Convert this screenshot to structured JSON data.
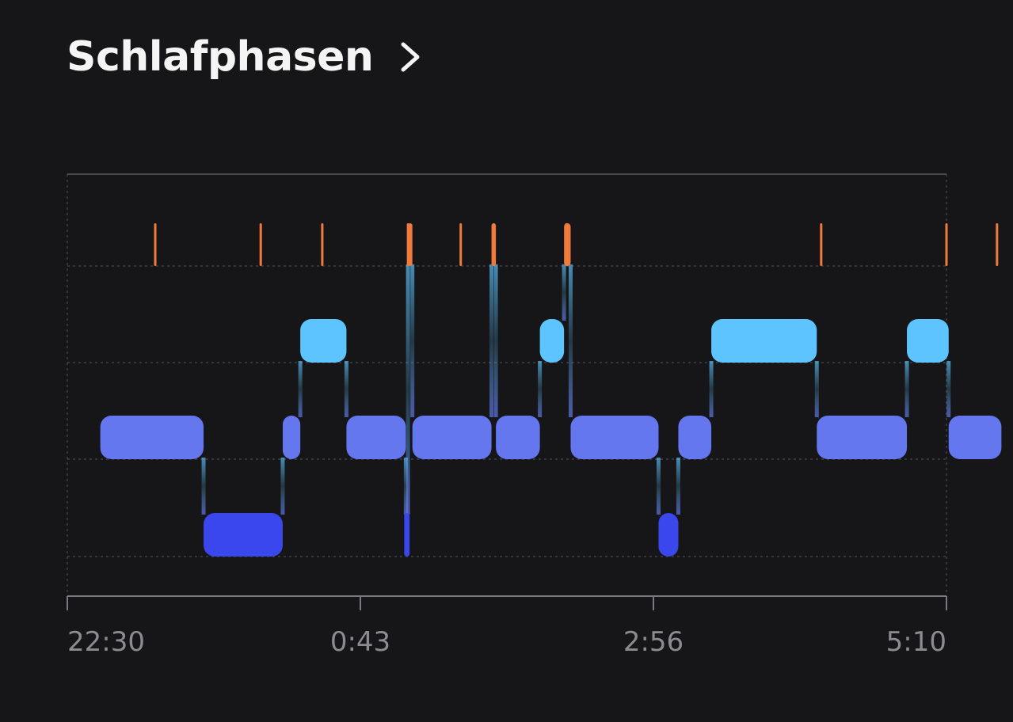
{
  "header": {
    "title": "Schlafphasen",
    "chevron_icon": "chevron-right-icon"
  },
  "chart_data": {
    "type": "timeline",
    "x_ticks": [
      "22:30",
      "0:43",
      "2:56",
      "5:10"
    ],
    "x_range": [
      "22:30",
      "5:10"
    ],
    "grid": true,
    "colors": {
      "awake": "#f07a3c",
      "rem": "#5ec4ff",
      "light": "#6577ee",
      "deep": "#3947ec"
    },
    "stages": [
      "awake",
      "rem",
      "light",
      "deep"
    ],
    "segments": [
      {
        "stage": "light",
        "start": "22:45",
        "end": "23:32"
      },
      {
        "stage": "deep",
        "start": "23:32",
        "end": "0:08"
      },
      {
        "stage": "light",
        "start": "0:08",
        "end": "0:16"
      },
      {
        "stage": "rem",
        "start": "0:16",
        "end": "0:37"
      },
      {
        "stage": "light",
        "start": "0:37",
        "end": "1:04"
      },
      {
        "stage": "deep",
        "start": "1:04",
        "end": "1:05"
      },
      {
        "stage": "awake",
        "start": "1:05",
        "end": "1:07"
      },
      {
        "stage": "light",
        "start": "1:07",
        "end": "1:43"
      },
      {
        "stage": "awake",
        "start": "1:43",
        "end": "1:45"
      },
      {
        "stage": "light",
        "start": "1:45",
        "end": "2:05"
      },
      {
        "stage": "rem",
        "start": "2:05",
        "end": "2:16"
      },
      {
        "stage": "awake",
        "start": "2:16",
        "end": "2:19"
      },
      {
        "stage": "light",
        "start": "2:19",
        "end": "2:59"
      },
      {
        "stage": "deep",
        "start": "2:59",
        "end": "3:08"
      },
      {
        "stage": "light",
        "start": "3:08",
        "end": "3:23"
      },
      {
        "stage": "rem",
        "start": "3:23",
        "end": "4:11"
      },
      {
        "stage": "light",
        "start": "4:11",
        "end": "4:52"
      },
      {
        "stage": "rem",
        "start": "4:52",
        "end": "5:11"
      },
      {
        "stage": "light",
        "start": "5:11",
        "end": "5:35"
      }
    ],
    "awake_markers": [
      "23:10",
      "23:58",
      "0:26",
      "1:05",
      "1:29",
      "1:44",
      "2:17",
      "4:13",
      "5:10",
      "5:33"
    ]
  }
}
